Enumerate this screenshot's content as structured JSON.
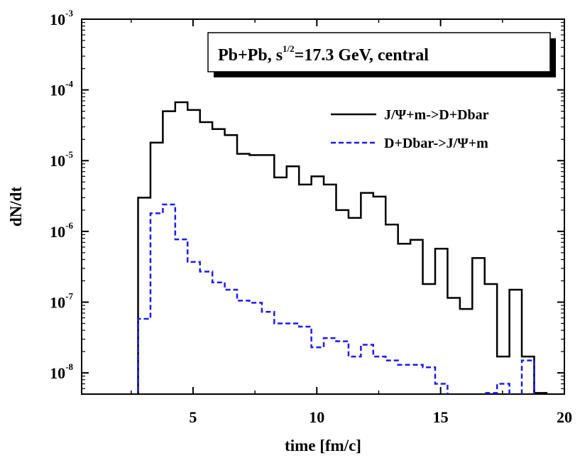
{
  "chart_data": {
    "type": "line",
    "xlabel": "time [fm/c]",
    "ylabel": "dN/dt",
    "xlim": [
      0.5,
      20
    ],
    "ylim_log10": [
      -8.3,
      -3
    ],
    "x_ticks": [
      5,
      10,
      15,
      20
    ],
    "x_tick_labels": [
      "5",
      "10",
      "15",
      "20"
    ],
    "y_ticks_log10": [
      -8,
      -7,
      -6,
      -5,
      -4,
      -3
    ],
    "y_tick_labels": [
      {
        "base": "10",
        "exp": "-8"
      },
      {
        "base": "10",
        "exp": "-7"
      },
      {
        "base": "10",
        "exp": "-6"
      },
      {
        "base": "10",
        "exp": "-5"
      },
      {
        "base": "10",
        "exp": "-4"
      },
      {
        "base": "10",
        "exp": "-3"
      }
    ],
    "annotation": {
      "pre": "Pb+Pb,  s",
      "sup": "1/2",
      "post": "=17.3 GeV,  central"
    },
    "series": [
      {
        "name": "J/Ψ+m->D+Dbar",
        "color": "#000000",
        "dash": "solid",
        "edges": [
          2.78,
          3.28,
          3.78,
          4.28,
          4.78,
          5.28,
          5.78,
          6.28,
          6.78,
          7.28,
          7.78,
          8.28,
          8.78,
          9.28,
          9.78,
          10.28,
          10.78,
          11.28,
          11.78,
          12.28,
          12.78,
          13.28,
          13.78,
          14.28,
          14.78,
          15.28,
          15.78,
          16.28,
          16.78,
          17.28,
          17.78,
          18.28,
          18.78,
          19.28
        ],
        "values": [
          3e-06,
          1.8e-05,
          5e-05,
          6.7e-05,
          5.2e-05,
          3.5e-05,
          2.8e-05,
          2.3e-05,
          1.25e-05,
          1.2e-05,
          1.2e-05,
          5.8e-06,
          8.3e-06,
          4.6e-06,
          6e-06,
          4.6e-06,
          2e-06,
          1.55e-06,
          3.5e-06,
          3.1e-06,
          1.25e-06,
          6.7e-07,
          7.6e-07,
          1.8e-07,
          5.7e-07,
          1.15e-07,
          8e-08,
          4.2e-07,
          1.8e-07,
          1.7e-08,
          1.5e-07,
          1.7e-08,
          5.2e-09,
          4.3e-09
        ]
      },
      {
        "name": "D+Dbar->J/Ψ+m",
        "color": "#1a1aff",
        "dash": "dashed",
        "edges": [
          2.78,
          3.28,
          3.78,
          4.28,
          4.78,
          5.28,
          5.78,
          6.28,
          6.78,
          7.28,
          7.78,
          8.28,
          8.78,
          9.28,
          9.78,
          10.28,
          10.78,
          11.28,
          11.78,
          12.28,
          12.78,
          13.28,
          13.78,
          14.28,
          14.78,
          15.28,
          15.78,
          16.28,
          16.78,
          17.28,
          17.78,
          18.28
        ],
        "values": [
          5.8e-08,
          1.8e-06,
          2.4e-06,
          7.7e-07,
          3.7e-07,
          2.7e-07,
          1.9e-07,
          1.5e-07,
          1.05e-07,
          9.8e-08,
          7.3e-08,
          5e-08,
          5e-08,
          4.5e-08,
          2.3e-08,
          3.1e-08,
          2.8e-08,
          1.7e-08,
          2.5e-08,
          1.7e-08,
          1.5e-08,
          1.3e-08,
          1.3e-08,
          1.2e-08,
          7e-09,
          4.5e-09,
          4.5e-09,
          4.5e-09,
          5.2e-09,
          7e-09,
          4.5e-09,
          1.5e-08
        ]
      }
    ]
  }
}
